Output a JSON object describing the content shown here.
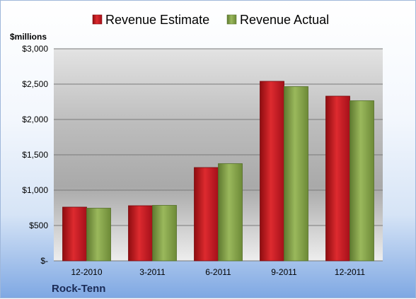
{
  "chart_data": {
    "type": "bar",
    "categories": [
      "12-2010",
      "3-2011",
      "6-2011",
      "9-2011",
      "12-2011"
    ],
    "series": [
      {
        "name": "Revenue Estimate",
        "color": "#c0141b",
        "values": [
          760,
          780,
          1320,
          2540,
          2330
        ]
      },
      {
        "name": "Revenue Actual",
        "color": "#7f9e45",
        "values": [
          745,
          785,
          1375,
          2465,
          2265
        ]
      }
    ],
    "yticks": [
      {
        "value": 0,
        "label": "$-"
      },
      {
        "value": 500,
        "label": "$500"
      },
      {
        "value": 1000,
        "label": "$1,000"
      },
      {
        "value": 1500,
        "label": "$1,500"
      },
      {
        "value": 2000,
        "label": "$2,000"
      },
      {
        "value": 2500,
        "label": "$2,500"
      },
      {
        "value": 3000,
        "label": "$3,000"
      }
    ],
    "ylim": [
      0,
      3000
    ],
    "unit_label": "$millions",
    "company": "Rock-Tenn",
    "legend_position": "top",
    "grid": true
  }
}
